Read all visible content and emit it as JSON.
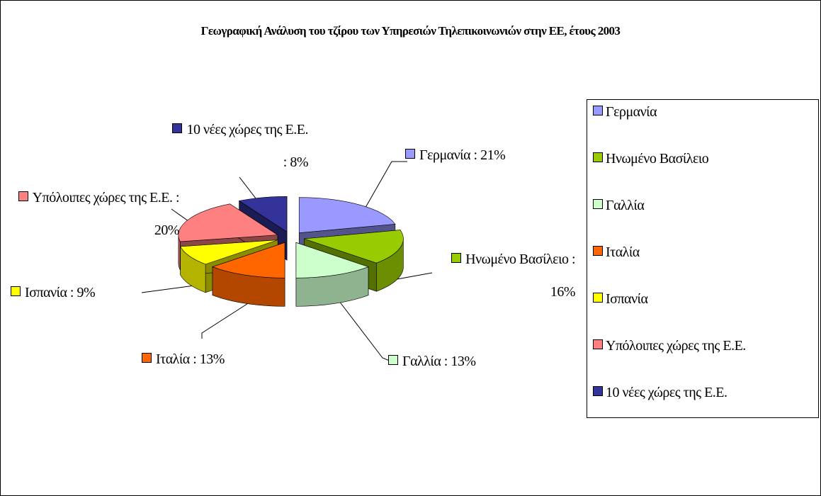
{
  "chart_data": {
    "type": "pie",
    "title": "Γεωγραφική Ανάλυση του τζίρου των Υπηρεσιών Τηλεπικοινωνιών στην ΕΕ, έτους 2003",
    "categories": [
      "Γερμανία",
      "Ηνωμένο Βασίλειο",
      "Γαλλία",
      "Ιταλία",
      "Ισπανία",
      "Υπόλοιπες χώρες της Ε.Ε.",
      "10 νέες χώρες της Ε.Ε."
    ],
    "values": [
      21,
      16,
      13,
      13,
      9,
      20,
      8
    ],
    "value_labels": [
      "Γερμανία : 21%",
      "Ηνωμένο Βασίλειο : 16%",
      "Γαλλία : 13%",
      "Ιταλία : 13%",
      "Ισπανία : 9%",
      "Υπόλοιπες χώρες της Ε.Ε. : 20%",
      "10 νέες χώρες της Ε.Ε. : 8%"
    ],
    "colors": [
      "#9999ff",
      "#99cc00",
      "#ccffcc",
      "#ff6600",
      "#ffff00",
      "#ff8080",
      "#333399"
    ],
    "legend": "right"
  }
}
